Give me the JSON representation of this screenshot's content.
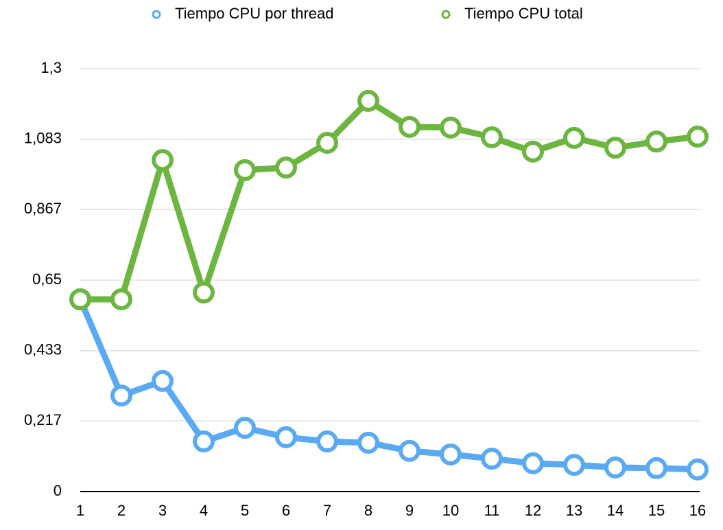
{
  "chart_data": {
    "type": "line",
    "x": [
      1,
      2,
      3,
      4,
      5,
      6,
      7,
      8,
      9,
      10,
      11,
      12,
      13,
      14,
      15,
      16
    ],
    "xlim": [
      1,
      16
    ],
    "xticks": [
      1,
      2,
      3,
      4,
      5,
      6,
      7,
      8,
      9,
      10,
      11,
      12,
      13,
      14,
      15,
      16
    ],
    "ylim": [
      0,
      1.3
    ],
    "yticks": [
      0,
      {
        "value": 0.217,
        "label": "0,217"
      },
      {
        "value": 0.433,
        "label": "0,433"
      },
      {
        "value": 0.65,
        "label": "0,65"
      },
      {
        "value": 0.867,
        "label": "0,867"
      },
      {
        "value": 1.083,
        "label": "1,083"
      },
      {
        "value": 1.3,
        "label": "1,3"
      }
    ],
    "grid": true,
    "legend": "top",
    "series": [
      {
        "name": "Tiempo CPU por thread",
        "color": "#5aaaf3",
        "values": [
          0.591,
          0.295,
          0.34,
          0.154,
          0.196,
          0.167,
          0.154,
          0.15,
          0.125,
          0.114,
          0.101,
          0.087,
          0.082,
          0.074,
          0.072,
          0.068
        ]
      },
      {
        "name": "Tiempo CPU total",
        "color": "#6cb53f",
        "values": [
          0.591,
          0.591,
          1.019,
          0.612,
          0.988,
          0.996,
          1.072,
          1.201,
          1.121,
          1.119,
          1.089,
          1.045,
          1.087,
          1.057,
          1.076,
          1.091
        ]
      }
    ]
  }
}
